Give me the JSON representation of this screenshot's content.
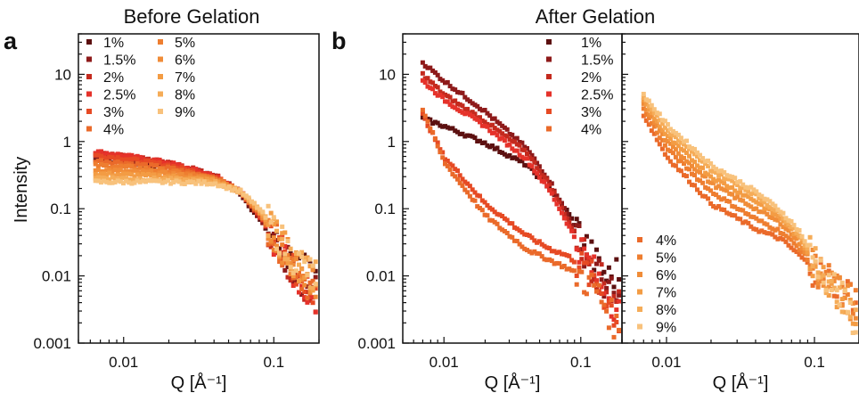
{
  "figure": {
    "titles": {
      "left": "Before Gelation",
      "right": "After Gelation"
    },
    "panel_labels": {
      "a": "a",
      "b": "b"
    },
    "ylabel": "Intensity",
    "xlabel": "Q [Å⁻¹]"
  },
  "colors": {
    "1%": "#5c1010",
    "1.5%": "#8e1a1a",
    "2%": "#c42a1e",
    "2.5%": "#e5322a",
    "3%": "#e64a24",
    "4%": "#ea6a2a",
    "5%": "#ee7e30",
    "6%": "#f08c38",
    "7%": "#f39c44",
    "8%": "#f5ac58",
    "9%": "#f8c27c"
  },
  "chart_data": [
    {
      "type": "scatter",
      "title": "Before Gelation",
      "panel": "a",
      "xlabel": "Q [Å⁻¹]",
      "ylabel": "Intensity",
      "xscale": "log",
      "yscale": "log",
      "xlim": [
        0.005,
        0.2
      ],
      "ylim": [
        0.001,
        40
      ],
      "xticks": [
        "0.01",
        "0.1"
      ],
      "yticks": [
        "0.001",
        "0.01",
        "0.1",
        "1",
        "10"
      ],
      "legend_position": "top-left",
      "legend": [
        "1%",
        "1.5%",
        "2%",
        "2.5%",
        "3%",
        "4%",
        "5%",
        "6%",
        "7%",
        "8%",
        "9%"
      ],
      "series": [
        {
          "name": "1%",
          "points": [
            [
              0.0065,
              0.52
            ],
            [
              0.01,
              0.5
            ],
            [
              0.02,
              0.42
            ],
            [
              0.04,
              0.3
            ],
            [
              0.06,
              0.17
            ],
            [
              0.08,
              0.07
            ],
            [
              0.1,
              0.035
            ],
            [
              0.13,
              0.016
            ],
            [
              0.16,
              0.012
            ],
            [
              0.19,
              0.01
            ]
          ]
        },
        {
          "name": "1.5%",
          "points": [
            [
              0.0065,
              0.6
            ],
            [
              0.01,
              0.56
            ],
            [
              0.02,
              0.46
            ],
            [
              0.04,
              0.32
            ],
            [
              0.06,
              0.18
            ],
            [
              0.08,
              0.075
            ],
            [
              0.1,
              0.033
            ],
            [
              0.13,
              0.015
            ],
            [
              0.16,
              0.008
            ],
            [
              0.19,
              0.006
            ]
          ]
        },
        {
          "name": "2%",
          "points": [
            [
              0.0065,
              0.66
            ],
            [
              0.01,
              0.6
            ],
            [
              0.02,
              0.48
            ],
            [
              0.04,
              0.32
            ],
            [
              0.06,
              0.18
            ],
            [
              0.08,
              0.078
            ],
            [
              0.1,
              0.034
            ],
            [
              0.13,
              0.014
            ],
            [
              0.16,
              0.007
            ],
            [
              0.19,
              0.005
            ]
          ]
        },
        {
          "name": "2.5%",
          "points": [
            [
              0.0065,
              0.7
            ],
            [
              0.01,
              0.62
            ],
            [
              0.02,
              0.48
            ],
            [
              0.04,
              0.31
            ],
            [
              0.06,
              0.18
            ],
            [
              0.08,
              0.08
            ],
            [
              0.1,
              0.035
            ],
            [
              0.13,
              0.014
            ],
            [
              0.16,
              0.006
            ],
            [
              0.19,
              0.004
            ]
          ]
        },
        {
          "name": "3%",
          "points": [
            [
              0.0065,
              0.62
            ],
            [
              0.01,
              0.56
            ],
            [
              0.02,
              0.44
            ],
            [
              0.04,
              0.3
            ],
            [
              0.06,
              0.18
            ],
            [
              0.08,
              0.08
            ],
            [
              0.1,
              0.036
            ],
            [
              0.13,
              0.015
            ],
            [
              0.16,
              0.008
            ],
            [
              0.19,
              0.005
            ]
          ]
        },
        {
          "name": "4%",
          "points": [
            [
              0.0065,
              0.52
            ],
            [
              0.01,
              0.48
            ],
            [
              0.02,
              0.4
            ],
            [
              0.04,
              0.29
            ],
            [
              0.06,
              0.18
            ],
            [
              0.08,
              0.085
            ],
            [
              0.1,
              0.038
            ],
            [
              0.13,
              0.016
            ],
            [
              0.16,
              0.009
            ],
            [
              0.19,
              0.006
            ]
          ]
        },
        {
          "name": "5%",
          "points": [
            [
              0.0065,
              0.44
            ],
            [
              0.01,
              0.42
            ],
            [
              0.02,
              0.36
            ],
            [
              0.04,
              0.28
            ],
            [
              0.06,
              0.18
            ],
            [
              0.08,
              0.09
            ],
            [
              0.1,
              0.04
            ],
            [
              0.13,
              0.017
            ],
            [
              0.16,
              0.01
            ],
            [
              0.19,
              0.007
            ]
          ]
        },
        {
          "name": "6%",
          "points": [
            [
              0.0065,
              0.38
            ],
            [
              0.01,
              0.36
            ],
            [
              0.02,
              0.33
            ],
            [
              0.04,
              0.27
            ],
            [
              0.06,
              0.18
            ],
            [
              0.08,
              0.09
            ],
            [
              0.1,
              0.042
            ],
            [
              0.13,
              0.018
            ],
            [
              0.16,
              0.011
            ],
            [
              0.19,
              0.008
            ]
          ]
        },
        {
          "name": "7%",
          "points": [
            [
              0.0065,
              0.33
            ],
            [
              0.01,
              0.32
            ],
            [
              0.02,
              0.3
            ],
            [
              0.04,
              0.26
            ],
            [
              0.06,
              0.18
            ],
            [
              0.08,
              0.095
            ],
            [
              0.1,
              0.045
            ],
            [
              0.13,
              0.019
            ],
            [
              0.16,
              0.012
            ],
            [
              0.19,
              0.009
            ]
          ]
        },
        {
          "name": "8%",
          "points": [
            [
              0.0065,
              0.29
            ],
            [
              0.01,
              0.28
            ],
            [
              0.02,
              0.27
            ],
            [
              0.04,
              0.25
            ],
            [
              0.06,
              0.18
            ],
            [
              0.08,
              0.1
            ],
            [
              0.1,
              0.048
            ],
            [
              0.13,
              0.02
            ],
            [
              0.16,
              0.012
            ],
            [
              0.19,
              0.01
            ]
          ]
        },
        {
          "name": "9%",
          "points": [
            [
              0.0065,
              0.25
            ],
            [
              0.01,
              0.25
            ],
            [
              0.02,
              0.25
            ],
            [
              0.04,
              0.24
            ],
            [
              0.06,
              0.18
            ],
            [
              0.08,
              0.1
            ],
            [
              0.1,
              0.05
            ],
            [
              0.13,
              0.021
            ],
            [
              0.16,
              0.013
            ],
            [
              0.19,
              0.01
            ]
          ]
        }
      ]
    },
    {
      "type": "scatter",
      "title": "After Gelation",
      "panel": "b",
      "xlabel": "Q [Å⁻¹]",
      "xscale": "log",
      "yscale": "log",
      "xlim": [
        0.005,
        0.2
      ],
      "ylim": [
        0.001,
        40
      ],
      "xticks": [
        "0.01",
        "0.1"
      ],
      "yticks": [
        "0.001",
        "0.01",
        "0.1",
        "1",
        "10"
      ],
      "legend_position": "top-right",
      "legend": [
        "1%",
        "1.5%",
        "2%",
        "2.5%",
        "3%",
        "4%"
      ],
      "series": [
        {
          "name": "1%",
          "points": [
            [
              0.007,
              2.2
            ],
            [
              0.01,
              1.7
            ],
            [
              0.02,
              0.95
            ],
            [
              0.04,
              0.45
            ],
            [
              0.06,
              0.2
            ],
            [
              0.08,
              0.09
            ],
            [
              0.1,
              0.04
            ],
            [
              0.13,
              0.015
            ],
            [
              0.16,
              0.009
            ],
            [
              0.19,
              0.012
            ]
          ]
        },
        {
          "name": "1.5%",
          "points": [
            [
              0.007,
              15
            ],
            [
              0.01,
              8.0
            ],
            [
              0.02,
              2.8
            ],
            [
              0.04,
              0.8
            ],
            [
              0.06,
              0.25
            ],
            [
              0.08,
              0.08
            ],
            [
              0.1,
              0.03
            ],
            [
              0.13,
              0.012
            ],
            [
              0.16,
              0.006
            ],
            [
              0.19,
              0.004
            ]
          ]
        },
        {
          "name": "2%",
          "points": [
            [
              0.007,
              10
            ],
            [
              0.01,
              5.0
            ],
            [
              0.02,
              2.0
            ],
            [
              0.04,
              0.7
            ],
            [
              0.06,
              0.22
            ],
            [
              0.08,
              0.07
            ],
            [
              0.1,
              0.028
            ],
            [
              0.13,
              0.011
            ],
            [
              0.16,
              0.006
            ],
            [
              0.19,
              0.005
            ]
          ]
        },
        {
          "name": "2.5%",
          "points": [
            [
              0.007,
              8
            ],
            [
              0.01,
              4.2
            ],
            [
              0.02,
              1.7
            ],
            [
              0.04,
              0.55
            ],
            [
              0.06,
              0.18
            ],
            [
              0.08,
              0.06
            ],
            [
              0.1,
              0.025
            ],
            [
              0.13,
              0.01
            ],
            [
              0.16,
              0.005
            ],
            [
              0.19,
              0.003
            ]
          ]
        },
        {
          "name": "3%",
          "points": [
            [
              0.007,
              2.5
            ],
            [
              0.01,
              0.6
            ],
            [
              0.02,
              0.12
            ],
            [
              0.04,
              0.04
            ],
            [
              0.06,
              0.025
            ],
            [
              0.08,
              0.02
            ],
            [
              0.1,
              0.014
            ],
            [
              0.13,
              0.008
            ],
            [
              0.16,
              0.004
            ],
            [
              0.19,
              0.002
            ]
          ]
        },
        {
          "name": "4%",
          "points": [
            [
              0.007,
              3.0
            ],
            [
              0.01,
              0.5
            ],
            [
              0.02,
              0.08
            ],
            [
              0.04,
              0.025
            ],
            [
              0.06,
              0.017
            ],
            [
              0.08,
              0.013
            ],
            [
              0.1,
              0.01
            ],
            [
              0.13,
              0.006
            ],
            [
              0.16,
              0.003
            ],
            [
              0.19,
              0.0015
            ]
          ]
        }
      ]
    },
    {
      "type": "scatter",
      "title": "After Gelation",
      "xlabel": "Q [Å⁻¹]",
      "xscale": "log",
      "yscale": "log",
      "xlim": [
        0.005,
        0.2
      ],
      "ylim": [
        0.001,
        40
      ],
      "xticks": [
        "0.01",
        "0.1"
      ],
      "legend_position": "bottom-left",
      "legend": [
        "4%",
        "5%",
        "6%",
        "7%",
        "8%",
        "9%"
      ],
      "series": [
        {
          "name": "4%",
          "points": [
            [
              0.007,
              2.5
            ],
            [
              0.01,
              0.6
            ],
            [
              0.02,
              0.12
            ],
            [
              0.04,
              0.05
            ],
            [
              0.06,
              0.035
            ],
            [
              0.08,
              0.02
            ],
            [
              0.1,
              0.012
            ],
            [
              0.13,
              0.008
            ],
            [
              0.16,
              0.006
            ],
            [
              0.19,
              0.005
            ]
          ]
        },
        {
          "name": "5%",
          "points": [
            [
              0.007,
              3.0
            ],
            [
              0.01,
              0.8
            ],
            [
              0.02,
              0.18
            ],
            [
              0.04,
              0.07
            ],
            [
              0.06,
              0.045
            ],
            [
              0.08,
              0.025
            ],
            [
              0.1,
              0.013
            ],
            [
              0.13,
              0.008
            ],
            [
              0.16,
              0.005
            ],
            [
              0.19,
              0.004
            ]
          ]
        },
        {
          "name": "6%",
          "points": [
            [
              0.007,
              3.5
            ],
            [
              0.01,
              1.0
            ],
            [
              0.02,
              0.24
            ],
            [
              0.04,
              0.1
            ],
            [
              0.06,
              0.06
            ],
            [
              0.08,
              0.03
            ],
            [
              0.1,
              0.014
            ],
            [
              0.13,
              0.008
            ],
            [
              0.16,
              0.005
            ],
            [
              0.19,
              0.003
            ]
          ]
        },
        {
          "name": "7%",
          "points": [
            [
              0.007,
              4.0
            ],
            [
              0.01,
              1.2
            ],
            [
              0.02,
              0.3
            ],
            [
              0.04,
              0.13
            ],
            [
              0.06,
              0.07
            ],
            [
              0.08,
              0.035
            ],
            [
              0.1,
              0.015
            ],
            [
              0.13,
              0.008
            ],
            [
              0.16,
              0.004
            ],
            [
              0.19,
              0.003
            ]
          ]
        },
        {
          "name": "8%",
          "points": [
            [
              0.007,
              4.5
            ],
            [
              0.01,
              1.5
            ],
            [
              0.02,
              0.38
            ],
            [
              0.04,
              0.16
            ],
            [
              0.06,
              0.08
            ],
            [
              0.08,
              0.04
            ],
            [
              0.1,
              0.016
            ],
            [
              0.13,
              0.008
            ],
            [
              0.16,
              0.004
            ],
            [
              0.19,
              0.002
            ]
          ]
        },
        {
          "name": "9%",
          "points": [
            [
              0.007,
              5.0
            ],
            [
              0.01,
              1.8
            ],
            [
              0.02,
              0.45
            ],
            [
              0.04,
              0.18
            ],
            [
              0.06,
              0.09
            ],
            [
              0.08,
              0.045
            ],
            [
              0.1,
              0.017
            ],
            [
              0.13,
              0.008
            ],
            [
              0.16,
              0.004
            ],
            [
              0.19,
              0.002
            ]
          ]
        }
      ]
    }
  ]
}
